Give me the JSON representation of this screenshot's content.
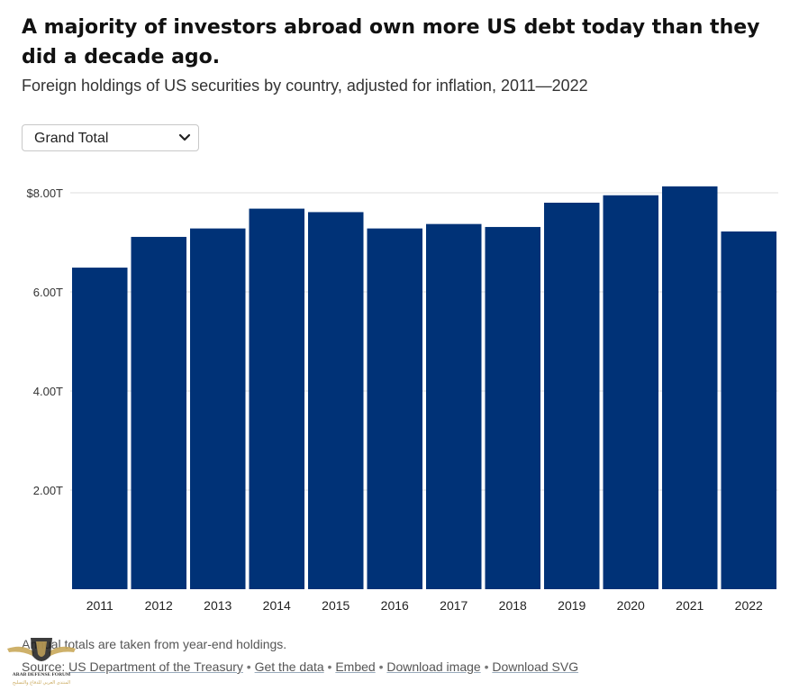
{
  "header": {
    "title": "A majority of investors abroad own more US debt today than they did a decade ago.",
    "subtitle": "Foreign holdings of US securities by country, adjusted for inflation, 2011—2022"
  },
  "filter": {
    "selected": "Grand Total",
    "icon": "chevron-down-icon"
  },
  "chart_data": {
    "type": "bar",
    "categories": [
      "2011",
      "2012",
      "2013",
      "2014",
      "2015",
      "2016",
      "2017",
      "2018",
      "2019",
      "2020",
      "2021",
      "2022"
    ],
    "values": [
      6.49,
      7.11,
      7.28,
      7.68,
      7.61,
      7.28,
      7.37,
      7.31,
      7.8,
      7.95,
      8.13,
      7.22
    ],
    "ylim": [
      0,
      8
    ],
    "yticks": [
      {
        "value": 2,
        "label": "2.00T"
      },
      {
        "value": 4,
        "label": "4.00T"
      },
      {
        "value": 6,
        "label": "6.00T"
      },
      {
        "value": 8,
        "label": "$8.00T"
      }
    ],
    "bar_color": "#003277",
    "grid": true,
    "xlabel": "",
    "ylabel": ""
  },
  "footer": {
    "note": "Annual totals are taken from year-end holdings.",
    "source_label": "Source:",
    "source_name": "US Department of the Treasury",
    "separator": " • ",
    "links": [
      "Get the data",
      "Embed",
      "Download image",
      "Download SVG"
    ]
  },
  "watermark": {
    "text": "ARAB DEFENSE FORUM",
    "subtext": "المنتدى العربي للدفاع والتسليح"
  }
}
